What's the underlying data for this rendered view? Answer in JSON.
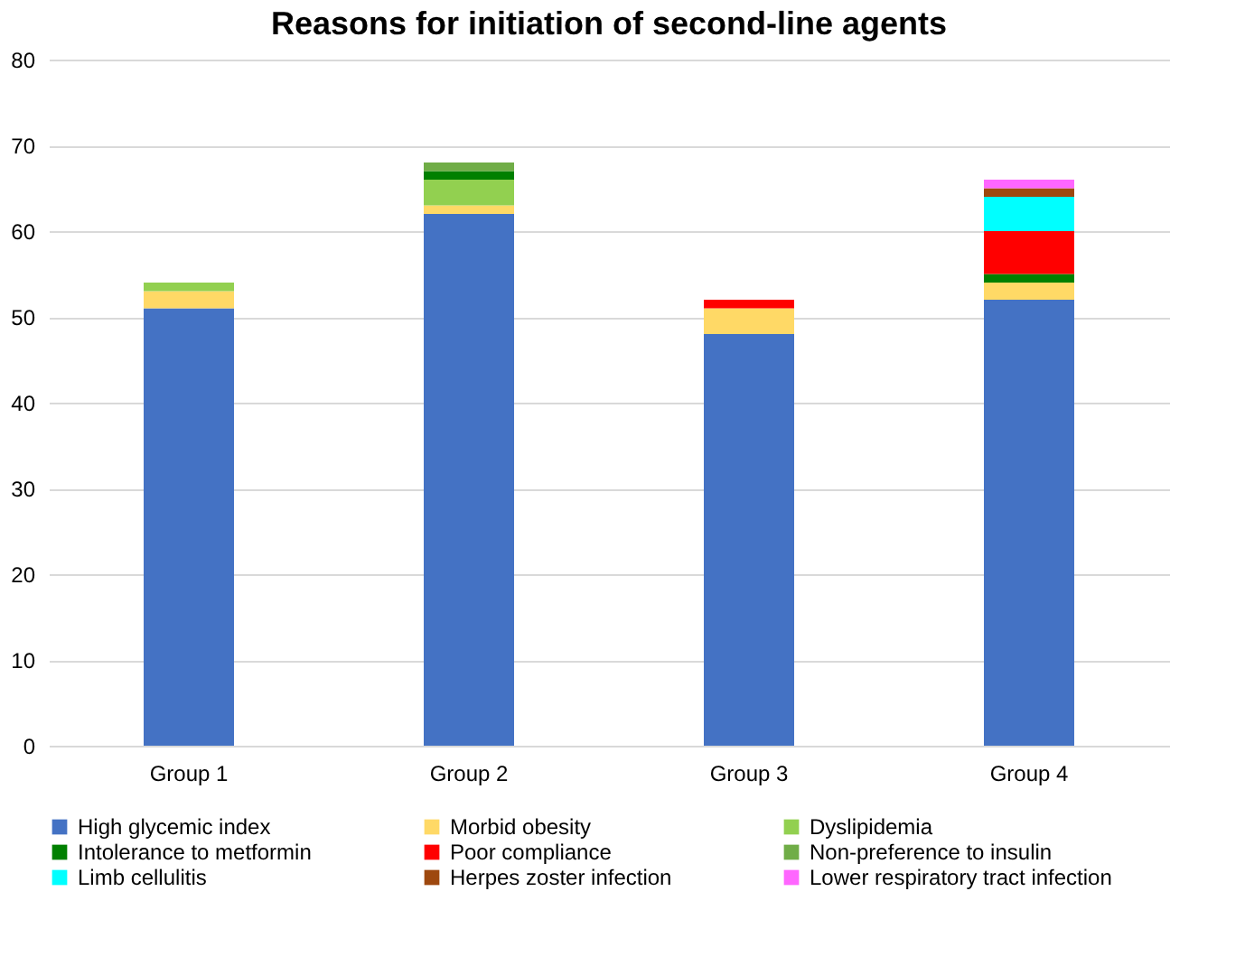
{
  "chart_data": {
    "type": "bar",
    "title": "Reasons for initiation of second-line agents",
    "categories": [
      "Group 1",
      "Group 2",
      "Group 3",
      "Group 4"
    ],
    "stacked": true,
    "ylim": [
      0,
      80
    ],
    "yticks": [
      0,
      10,
      20,
      30,
      40,
      50,
      60,
      70,
      80
    ],
    "grid": "y",
    "legend": "bottom",
    "series": [
      {
        "name": "High glycemic index",
        "color": "#4472c4",
        "values": [
          51,
          62,
          48,
          52
        ]
      },
      {
        "name": "Morbid obesity",
        "color": "#ffd966",
        "values": [
          2,
          1,
          3,
          2
        ]
      },
      {
        "name": "Dyslipidemia",
        "color": "#92d050",
        "values": [
          1,
          3,
          0,
          0
        ]
      },
      {
        "name": "Intolerance to metformin",
        "color": "#008000",
        "values": [
          0,
          1,
          0,
          1
        ]
      },
      {
        "name": "Poor compliance",
        "color": "#ff0000",
        "values": [
          0,
          0,
          1,
          5
        ]
      },
      {
        "name": "Non-preference to insulin",
        "color": "#70ad47",
        "values": [
          0,
          1,
          0,
          0
        ]
      },
      {
        "name": "Limb cellulitis",
        "color": "#00ffff",
        "values": [
          0,
          0,
          0,
          4
        ]
      },
      {
        "name": "Herpes zoster infection",
        "color": "#9e480e",
        "values": [
          0,
          0,
          0,
          1
        ]
      },
      {
        "name": "Lower respiratory tract infection",
        "color": "#ff66ff",
        "values": [
          0,
          0,
          0,
          1
        ]
      }
    ]
  }
}
